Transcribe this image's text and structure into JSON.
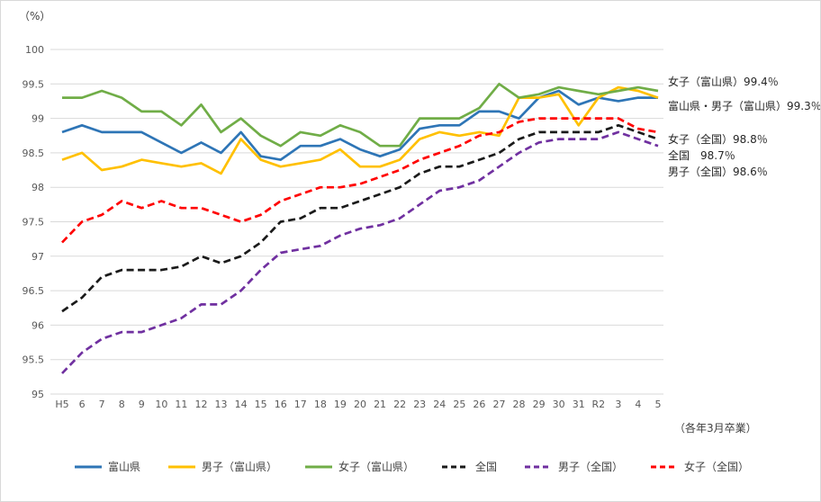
{
  "unit_label": "（%）",
  "caption": "（各年3月卒業）",
  "colors": {
    "toyama": "#2e75b6",
    "boys_toyama": "#ffc000",
    "girls_toyama": "#70ad47",
    "national": "#1a1a1a",
    "boys_national": "#7030a0",
    "girls_national": "#ff0000",
    "grid": "#d9d9d9",
    "axis_text": "#595959"
  },
  "annotations": [
    {
      "text": "女子（富山県）99.4％"
    },
    {
      "text": "富山県・男子（富山県）99.3％"
    },
    {
      "text": "女子（全国）98.8％"
    },
    {
      "text": "全国　98.7％"
    },
    {
      "text": "男子（全国）98.6％"
    }
  ],
  "chart_data": {
    "type": "line",
    "title": "",
    "xlabel": "",
    "ylabel": "（%）",
    "ylim": [
      95,
      100
    ],
    "ytick_step": 0.5,
    "grid": true,
    "legend_position": "bottom",
    "x": [
      "H5",
      "6",
      "7",
      "8",
      "9",
      "10",
      "11",
      "12",
      "13",
      "14",
      "15",
      "16",
      "17",
      "18",
      "19",
      "20",
      "21",
      "22",
      "23",
      "24",
      "25",
      "26",
      "27",
      "28",
      "29",
      "30",
      "31",
      "R2",
      "3",
      "4",
      "5"
    ],
    "series": [
      {
        "name": "富山県",
        "color_key": "toyama",
        "style": "solid",
        "values": [
          98.8,
          98.9,
          98.8,
          98.8,
          98.8,
          98.65,
          98.5,
          98.65,
          98.5,
          98.8,
          98.45,
          98.4,
          98.6,
          98.6,
          98.7,
          98.55,
          98.45,
          98.55,
          98.85,
          98.9,
          98.9,
          99.1,
          99.1,
          99.0,
          99.3,
          99.4,
          99.2,
          99.3,
          99.25,
          99.3,
          99.3
        ]
      },
      {
        "name": "男子（富山県）",
        "color_key": "boys_toyama",
        "style": "solid",
        "values": [
          98.4,
          98.5,
          98.25,
          98.3,
          98.4,
          98.35,
          98.3,
          98.35,
          98.2,
          98.7,
          98.4,
          98.3,
          98.35,
          98.4,
          98.55,
          98.3,
          98.3,
          98.4,
          98.7,
          98.8,
          98.75,
          98.8,
          98.75,
          99.3,
          99.3,
          99.35,
          98.9,
          99.3,
          99.45,
          99.4,
          99.3
        ]
      },
      {
        "name": "女子（富山県）",
        "color_key": "girls_toyama",
        "style": "solid",
        "values": [
          99.3,
          99.3,
          99.4,
          99.3,
          99.1,
          99.1,
          98.9,
          99.2,
          98.8,
          99.0,
          98.75,
          98.6,
          98.8,
          98.75,
          98.9,
          98.8,
          98.6,
          98.6,
          99.0,
          99.0,
          99.0,
          99.15,
          99.5,
          99.3,
          99.35,
          99.45,
          99.4,
          99.35,
          99.4,
          99.45,
          99.4
        ]
      },
      {
        "name": "全国",
        "color_key": "national",
        "style": "dashed",
        "values": [
          96.2,
          96.4,
          96.7,
          96.8,
          96.8,
          96.8,
          96.85,
          97.0,
          96.9,
          97.0,
          97.2,
          97.5,
          97.55,
          97.7,
          97.7,
          97.8,
          97.9,
          98.0,
          98.2,
          98.3,
          98.3,
          98.4,
          98.5,
          98.7,
          98.8,
          98.8,
          98.8,
          98.8,
          98.9,
          98.8,
          98.7
        ]
      },
      {
        "name": "男子（全国）",
        "color_key": "boys_national",
        "style": "dashed",
        "values": [
          95.3,
          95.6,
          95.8,
          95.9,
          95.9,
          96.0,
          96.1,
          96.3,
          96.3,
          96.5,
          96.8,
          97.05,
          97.1,
          97.15,
          97.3,
          97.4,
          97.45,
          97.55,
          97.75,
          97.95,
          98.0,
          98.1,
          98.3,
          98.5,
          98.65,
          98.7,
          98.7,
          98.7,
          98.8,
          98.7,
          98.6
        ]
      },
      {
        "name": "女子（全国）",
        "color_key": "girls_national",
        "style": "dashed",
        "values": [
          97.2,
          97.5,
          97.6,
          97.8,
          97.7,
          97.8,
          97.7,
          97.7,
          97.6,
          97.5,
          97.6,
          97.8,
          97.9,
          98.0,
          98.0,
          98.05,
          98.15,
          98.25,
          98.4,
          98.5,
          98.6,
          98.75,
          98.8,
          98.95,
          99.0,
          99.0,
          99.0,
          99.0,
          99.0,
          98.85,
          98.8
        ]
      }
    ]
  }
}
